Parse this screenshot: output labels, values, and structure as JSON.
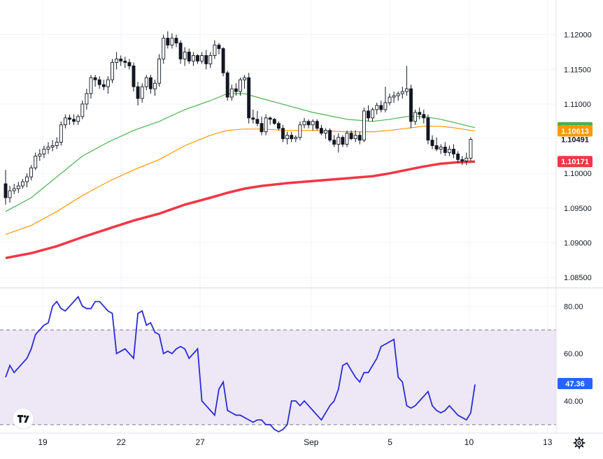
{
  "chart_data": [
    {
      "type": "candlestick",
      "price_axis": {
        "ticks": [
          "1.12000",
          "1.11500",
          "1.11000",
          "1.10500",
          "1.10000",
          "1.09500",
          "1.09000",
          "1.08500"
        ],
        "tick_values": [
          1.12,
          1.115,
          1.11,
          1.105,
          1.1,
          1.095,
          1.09,
          1.085
        ],
        "range": [
          1.0835,
          1.1245
        ]
      },
      "x_axis": {
        "ticks": [
          "19",
          "22",
          "27",
          "Sep",
          "5",
          "10",
          "13"
        ],
        "tick_index": [
          8.7,
          27.1,
          45.6,
          71.6,
          90.1,
          108.6,
          127.0
        ]
      },
      "last_price": {
        "label": "1.10491",
        "value": 1.10491
      },
      "tags": [
        {
          "label": "1.10660",
          "value": 1.1066,
          "color": "#4caf50"
        },
        {
          "label": "1.10613",
          "value": 1.10613,
          "color": "#ff9800"
        },
        {
          "label": "1.10171",
          "value": 1.10171,
          "color": "#f23645"
        }
      ],
      "candles": [
        [
          1.0985,
          1.1005,
          1.0955,
          1.0965
        ],
        [
          1.0965,
          1.0982,
          1.0958,
          1.0975
        ],
        [
          1.0975,
          1.0985,
          1.097,
          1.0978
        ],
        [
          1.0978,
          1.0988,
          1.0972,
          1.0982
        ],
        [
          1.0982,
          1.0992,
          1.0978,
          1.0988
        ],
        [
          1.0988,
          1.1,
          1.098,
          1.0995
        ],
        [
          1.0995,
          1.1012,
          1.099,
          1.1008
        ],
        [
          1.1008,
          1.103,
          1.1005,
          1.1025
        ],
        [
          1.1025,
          1.1035,
          1.1018,
          1.1028
        ],
        [
          1.1028,
          1.104,
          1.1022,
          1.1035
        ],
        [
          1.1035,
          1.1045,
          1.1028,
          1.1038
        ],
        [
          1.1038,
          1.1048,
          1.1032,
          1.104
        ],
        [
          1.104,
          1.1052,
          1.1035,
          1.1045
        ],
        [
          1.1045,
          1.1075,
          1.104,
          1.107
        ],
        [
          1.107,
          1.1085,
          1.1065,
          1.108
        ],
        [
          1.108,
          1.1085,
          1.107,
          1.1078
        ],
        [
          1.1078,
          1.1085,
          1.107,
          1.1075
        ],
        [
          1.1075,
          1.1085,
          1.107,
          1.1082
        ],
        [
          1.1082,
          1.1105,
          1.1078,
          1.11
        ],
        [
          1.11,
          1.1122,
          1.1092,
          1.1115
        ],
        [
          1.1115,
          1.1142,
          1.1108,
          1.1138
        ],
        [
          1.1138,
          1.1142,
          1.1125,
          1.1135
        ],
        [
          1.1135,
          1.114,
          1.1122,
          1.1128
        ],
        [
          1.1128,
          1.1135,
          1.112,
          1.1125
        ],
        [
          1.1125,
          1.114,
          1.1115,
          1.1135
        ],
        [
          1.1135,
          1.1165,
          1.113,
          1.116
        ],
        [
          1.116,
          1.1175,
          1.115,
          1.1165
        ],
        [
          1.1165,
          1.117,
          1.1155,
          1.1162
        ],
        [
          1.1162,
          1.1168,
          1.1152,
          1.116
        ],
        [
          1.116,
          1.1165,
          1.115,
          1.1155
        ],
        [
          1.1155,
          1.116,
          1.1118,
          1.1125
        ],
        [
          1.1125,
          1.1132,
          1.1098,
          1.1108
        ],
        [
          1.1108,
          1.113,
          1.1102,
          1.1125
        ],
        [
          1.1125,
          1.1142,
          1.112,
          1.1138
        ],
        [
          1.1138,
          1.1142,
          1.1115,
          1.1122
        ],
        [
          1.1122,
          1.1135,
          1.1112,
          1.113
        ],
        [
          1.113,
          1.1172,
          1.1125,
          1.1165
        ],
        [
          1.1165,
          1.12,
          1.1158,
          1.1195
        ],
        [
          1.1195,
          1.1205,
          1.118,
          1.1185
        ],
        [
          1.1185,
          1.1202,
          1.118,
          1.1195
        ],
        [
          1.1195,
          1.12,
          1.1182,
          1.1188
        ],
        [
          1.1188,
          1.1192,
          1.1158,
          1.1165
        ],
        [
          1.1165,
          1.1182,
          1.1155,
          1.1175
        ],
        [
          1.1175,
          1.118,
          1.1158,
          1.1162
        ],
        [
          1.1162,
          1.1175,
          1.1155,
          1.117
        ],
        [
          1.117,
          1.1172,
          1.1158,
          1.1162
        ],
        [
          1.1162,
          1.1175,
          1.1158,
          1.117
        ],
        [
          1.117,
          1.1178,
          1.115,
          1.1158
        ],
        [
          1.1158,
          1.1175,
          1.1152,
          1.117
        ],
        [
          1.117,
          1.1192,
          1.1165,
          1.1185
        ],
        [
          1.1185,
          1.1188,
          1.1172,
          1.118
        ],
        [
          1.118,
          1.1182,
          1.114,
          1.1145
        ],
        [
          1.1145,
          1.1148,
          1.1105,
          1.111
        ],
        [
          1.111,
          1.1128,
          1.1105,
          1.1122
        ],
        [
          1.1122,
          1.113,
          1.1112,
          1.1118
        ],
        [
          1.1118,
          1.1138,
          1.1112,
          1.1135
        ],
        [
          1.1135,
          1.1142,
          1.1122,
          1.1138
        ],
        [
          1.1138,
          1.1145,
          1.1072,
          1.108
        ],
        [
          1.108,
          1.1092,
          1.1072,
          1.1078
        ],
        [
          1.1078,
          1.109,
          1.1068,
          1.1072
        ],
        [
          1.1072,
          1.1082,
          1.1055,
          1.106
        ],
        [
          1.106,
          1.1085,
          1.1055,
          1.108
        ],
        [
          1.108,
          1.1082,
          1.107,
          1.1078
        ],
        [
          1.1078,
          1.108,
          1.107,
          1.1072
        ],
        [
          1.1072,
          1.1075,
          1.1062,
          1.1065
        ],
        [
          1.1065,
          1.107,
          1.1045,
          1.105
        ],
        [
          1.105,
          1.106,
          1.1042,
          1.1055
        ],
        [
          1.1055,
          1.106,
          1.1045,
          1.105
        ],
        [
          1.105,
          1.1055,
          1.1045,
          1.1052
        ],
        [
          1.1052,
          1.1075,
          1.1048,
          1.107
        ],
        [
          1.107,
          1.108,
          1.1065,
          1.1075
        ],
        [
          1.1075,
          1.1078,
          1.1065,
          1.107
        ],
        [
          1.107,
          1.1078,
          1.1062,
          1.1075
        ],
        [
          1.1075,
          1.1078,
          1.1062,
          1.1065
        ],
        [
          1.1065,
          1.107,
          1.1055,
          1.1058
        ],
        [
          1.1058,
          1.1065,
          1.105,
          1.1062
        ],
        [
          1.1062,
          1.1065,
          1.1045,
          1.1048
        ],
        [
          1.1048,
          1.1055,
          1.1038,
          1.1042
        ],
        [
          1.1042,
          1.1058,
          1.103,
          1.1052
        ],
        [
          1.1052,
          1.1055,
          1.1038,
          1.1042
        ],
        [
          1.1042,
          1.1062,
          1.1038,
          1.1058
        ],
        [
          1.1058,
          1.1062,
          1.1048,
          1.105
        ],
        [
          1.105,
          1.1062,
          1.1045,
          1.1055
        ],
        [
          1.1055,
          1.106,
          1.1042,
          1.1048
        ],
        [
          1.1048,
          1.1095,
          1.1045,
          1.109
        ],
        [
          1.109,
          1.1098,
          1.1075,
          1.108
        ],
        [
          1.108,
          1.1095,
          1.1075,
          1.1092
        ],
        [
          1.1092,
          1.1102,
          1.1085,
          1.1098
        ],
        [
          1.1098,
          1.1105,
          1.1088,
          1.1092
        ],
        [
          1.1092,
          1.1125,
          1.1088,
          1.1102
        ],
        [
          1.1102,
          1.1115,
          1.1098,
          1.111
        ],
        [
          1.111,
          1.1118,
          1.1102,
          1.1112
        ],
        [
          1.1112,
          1.1118,
          1.1105,
          1.1115
        ],
        [
          1.1115,
          1.1125,
          1.1108,
          1.1118
        ],
        [
          1.1118,
          1.1155,
          1.1112,
          1.1122
        ],
        [
          1.1122,
          1.1128,
          1.1065,
          1.1075
        ],
        [
          1.1075,
          1.1092,
          1.107,
          1.1088
        ],
        [
          1.1088,
          1.1095,
          1.1078,
          1.1085
        ],
        [
          1.1085,
          1.1092,
          1.1072,
          1.108
        ],
        [
          1.108,
          1.1085,
          1.1042,
          1.1048
        ],
        [
          1.1048,
          1.1055,
          1.1035,
          1.104
        ],
        [
          1.104,
          1.1052,
          1.1032,
          1.1035
        ],
        [
          1.1035,
          1.1042,
          1.1028,
          1.1038
        ],
        [
          1.1038,
          1.1045,
          1.1025,
          1.103
        ],
        [
          1.103,
          1.104,
          1.1025,
          1.1035
        ],
        [
          1.1035,
          1.1042,
          1.1022,
          1.1028
        ],
        [
          1.1028,
          1.1032,
          1.1015,
          1.102
        ],
        [
          1.102,
          1.1025,
          1.1012,
          1.1018
        ],
        [
          1.1018,
          1.103,
          1.1012,
          1.1022
        ],
        [
          1.1022,
          1.1052,
          1.1018,
          1.1049
        ]
      ],
      "series": [
        {
          "color": "#4caf50",
          "points": [
            [
              0,
              1.0945
            ],
            [
              6,
              1.0965
            ],
            [
              12,
              1.0995
            ],
            [
              18,
              1.1025
            ],
            [
              24,
              1.1045
            ],
            [
              30,
              1.1062
            ],
            [
              36,
              1.1075
            ],
            [
              42,
              1.1092
            ],
            [
              48,
              1.1105
            ],
            [
              52,
              1.1115
            ],
            [
              56,
              1.1115
            ],
            [
              60,
              1.1108
            ],
            [
              66,
              1.1098
            ],
            [
              72,
              1.1088
            ],
            [
              80,
              1.1078
            ],
            [
              86,
              1.1075
            ],
            [
              90,
              1.1078
            ],
            [
              94,
              1.1082
            ],
            [
              98,
              1.1082
            ],
            [
              102,
              1.1078
            ],
            [
              106,
              1.1072
            ],
            [
              110,
              1.1066
            ]
          ]
        },
        {
          "color": "#ff9800",
          "points": [
            [
              0,
              1.0912
            ],
            [
              6,
              1.0925
            ],
            [
              12,
              1.0945
            ],
            [
              18,
              1.0968
            ],
            [
              24,
              1.0988
            ],
            [
              30,
              1.1005
            ],
            [
              36,
              1.102
            ],
            [
              42,
              1.104
            ],
            [
              48,
              1.1055
            ],
            [
              52,
              1.1062
            ],
            [
              56,
              1.1064
            ],
            [
              60,
              1.1064
            ],
            [
              66,
              1.1062
            ],
            [
              72,
              1.1062
            ],
            [
              80,
              1.106
            ],
            [
              86,
              1.106
            ],
            [
              90,
              1.1062
            ],
            [
              94,
              1.1065
            ],
            [
              98,
              1.1068
            ],
            [
              102,
              1.1068
            ],
            [
              106,
              1.1065
            ],
            [
              110,
              1.1061
            ]
          ]
        },
        {
          "color": "#f23645",
          "points": [
            [
              0,
              1.0878
            ],
            [
              6,
              1.0885
            ],
            [
              12,
              1.0895
            ],
            [
              18,
              1.0908
            ],
            [
              24,
              1.092
            ],
            [
              30,
              1.0932
            ],
            [
              36,
              1.0942
            ],
            [
              42,
              1.0955
            ],
            [
              48,
              1.0965
            ],
            [
              52,
              1.0972
            ],
            [
              56,
              1.0978
            ],
            [
              60,
              1.0982
            ],
            [
              66,
              1.0986
            ],
            [
              72,
              1.0989
            ],
            [
              80,
              1.0993
            ],
            [
              86,
              1.0996
            ],
            [
              90,
              1.1
            ],
            [
              94,
              1.1005
            ],
            [
              98,
              1.101
            ],
            [
              102,
              1.1014
            ],
            [
              106,
              1.1016
            ],
            [
              110,
              1.1017
            ]
          ]
        }
      ]
    },
    {
      "type": "line",
      "axis": {
        "ticks": [
          "80.00",
          "60.00",
          "40.00"
        ],
        "tick_values": [
          80,
          60,
          40
        ],
        "range": [
          27,
          86
        ]
      },
      "band": {
        "upper": 70,
        "lower": 30
      },
      "last_value": {
        "label": "47.36",
        "value": 47.36
      },
      "color": "#2b2bd6",
      "values": [
        50,
        55,
        52,
        54,
        56,
        58,
        62,
        68,
        70,
        72,
        73,
        80,
        82,
        79,
        78,
        80,
        82,
        84,
        80,
        79,
        79,
        82,
        82,
        80,
        78,
        77,
        60,
        61,
        62,
        60,
        58,
        77,
        78,
        72,
        73,
        69,
        68,
        60,
        61,
        60,
        62,
        63,
        62,
        58,
        60,
        62,
        40,
        38,
        36,
        34,
        45,
        48,
        36,
        35,
        34,
        34,
        33,
        32,
        31,
        32,
        32,
        30,
        30,
        28,
        27,
        28,
        30,
        40,
        40,
        38,
        40,
        38,
        36,
        34,
        32,
        35,
        38,
        40,
        45,
        55,
        56,
        53,
        50,
        48,
        52,
        52,
        55,
        58,
        63,
        64,
        65,
        66,
        50,
        48,
        38,
        37,
        38,
        40,
        42,
        44,
        38,
        36,
        35,
        36,
        38,
        36,
        34,
        33,
        32,
        35,
        47
      ]
    }
  ],
  "colors": {
    "bull": "#ffffff",
    "bear": "#131722",
    "grid": "#f0f3fa",
    "band_fill": "#ede7f6",
    "band_line": "#787b86",
    "rsi_tag": "#2962ff",
    "last_price_bg": "#ffffff"
  },
  "icons": {
    "logo": "tradingview-logo-icon",
    "settings": "gear-icon"
  }
}
